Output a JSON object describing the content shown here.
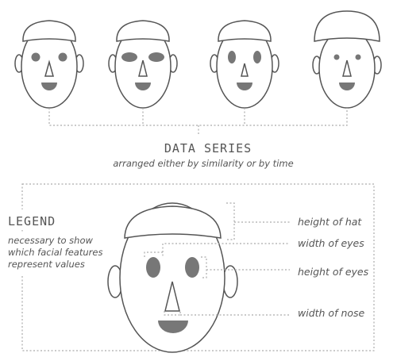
{
  "data_series": {
    "title": "DATA SERIES",
    "subtitle": "arranged either by similarity or by time"
  },
  "legend": {
    "title": "LEGEND",
    "description_lines": [
      "necessary to show",
      "which facial features",
      "represent values"
    ],
    "labels": {
      "hat_height": "height of hat",
      "eye_width": "width of eyes",
      "eye_height": "height of eyes",
      "nose_width": "width of nose"
    }
  },
  "colors": {
    "outline": "#555555",
    "feature_fill": "#777777",
    "connector": "#aaaaaa",
    "text": "#555555"
  }
}
